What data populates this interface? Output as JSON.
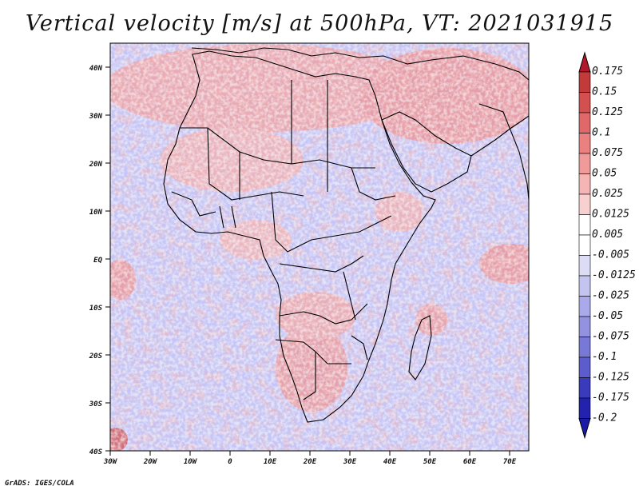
{
  "title": "Vertical velocity [m/s] at 500hPa, VT: 2021031915",
  "credit": "GrADS: IGES/COLA",
  "map": {
    "lat_labels": [
      "40N",
      "30N",
      "20N",
      "10N",
      "EQ",
      "10S",
      "20S",
      "30S",
      "40S"
    ],
    "lon_labels": [
      "30W",
      "20W",
      "10W",
      "0",
      "10E",
      "20E",
      "30E",
      "40E",
      "50E",
      "60E",
      "70E"
    ]
  },
  "colorbar": {
    "levels": [
      "0.175",
      "0.15",
      "0.125",
      "0.1",
      "0.075",
      "0.05",
      "0.025",
      "0.0125",
      "0.005",
      "-0.005",
      "-0.0125",
      "-0.025",
      "-0.05",
      "-0.075",
      "-0.1",
      "-0.125",
      "-0.175",
      "-0.2"
    ],
    "top_color": "#b2182b",
    "bottom_color": "#1a1aa6",
    "colors": [
      "#b2182b",
      "#c23a3a",
      "#d45050",
      "#e06868",
      "#ea8080",
      "#f09a9a",
      "#f5b5b5",
      "#f9d0d0",
      "#ffffff",
      "#ffffff",
      "#dcdcf5",
      "#c4c4f0",
      "#aaaaea",
      "#9292e0",
      "#7878d6",
      "#5c5ccc",
      "#3a3abd",
      "#2222ae",
      "#1a1aa6"
    ]
  }
}
